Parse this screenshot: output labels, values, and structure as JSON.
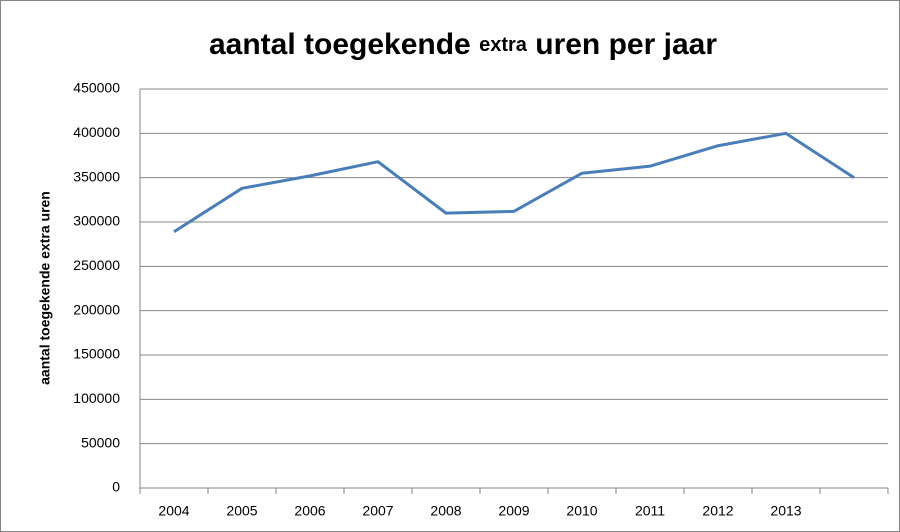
{
  "chart_data": {
    "type": "line",
    "title": [
      "aantal toegekende",
      "extra",
      "uren per jaar"
    ],
    "y_label": "aantal toegekende extra uren",
    "categories": [
      "2004",
      "2005",
      "2006",
      "2007",
      "2008",
      "2009",
      "2010",
      "2011",
      "2012",
      "2013",
      null
    ],
    "series": [
      {
        "name": null,
        "color": "#4a7ebb",
        "values": [
          289000,
          338000,
          352000,
          368000,
          310000,
          312000,
          355000,
          363000,
          386000,
          400000,
          350000
        ]
      }
    ],
    "ylim": [
      0,
      450000
    ],
    "yticks": [
      0,
      50000,
      100000,
      150000,
      200000,
      250000,
      300000,
      350000,
      400000,
      450000
    ],
    "grid": true
  }
}
